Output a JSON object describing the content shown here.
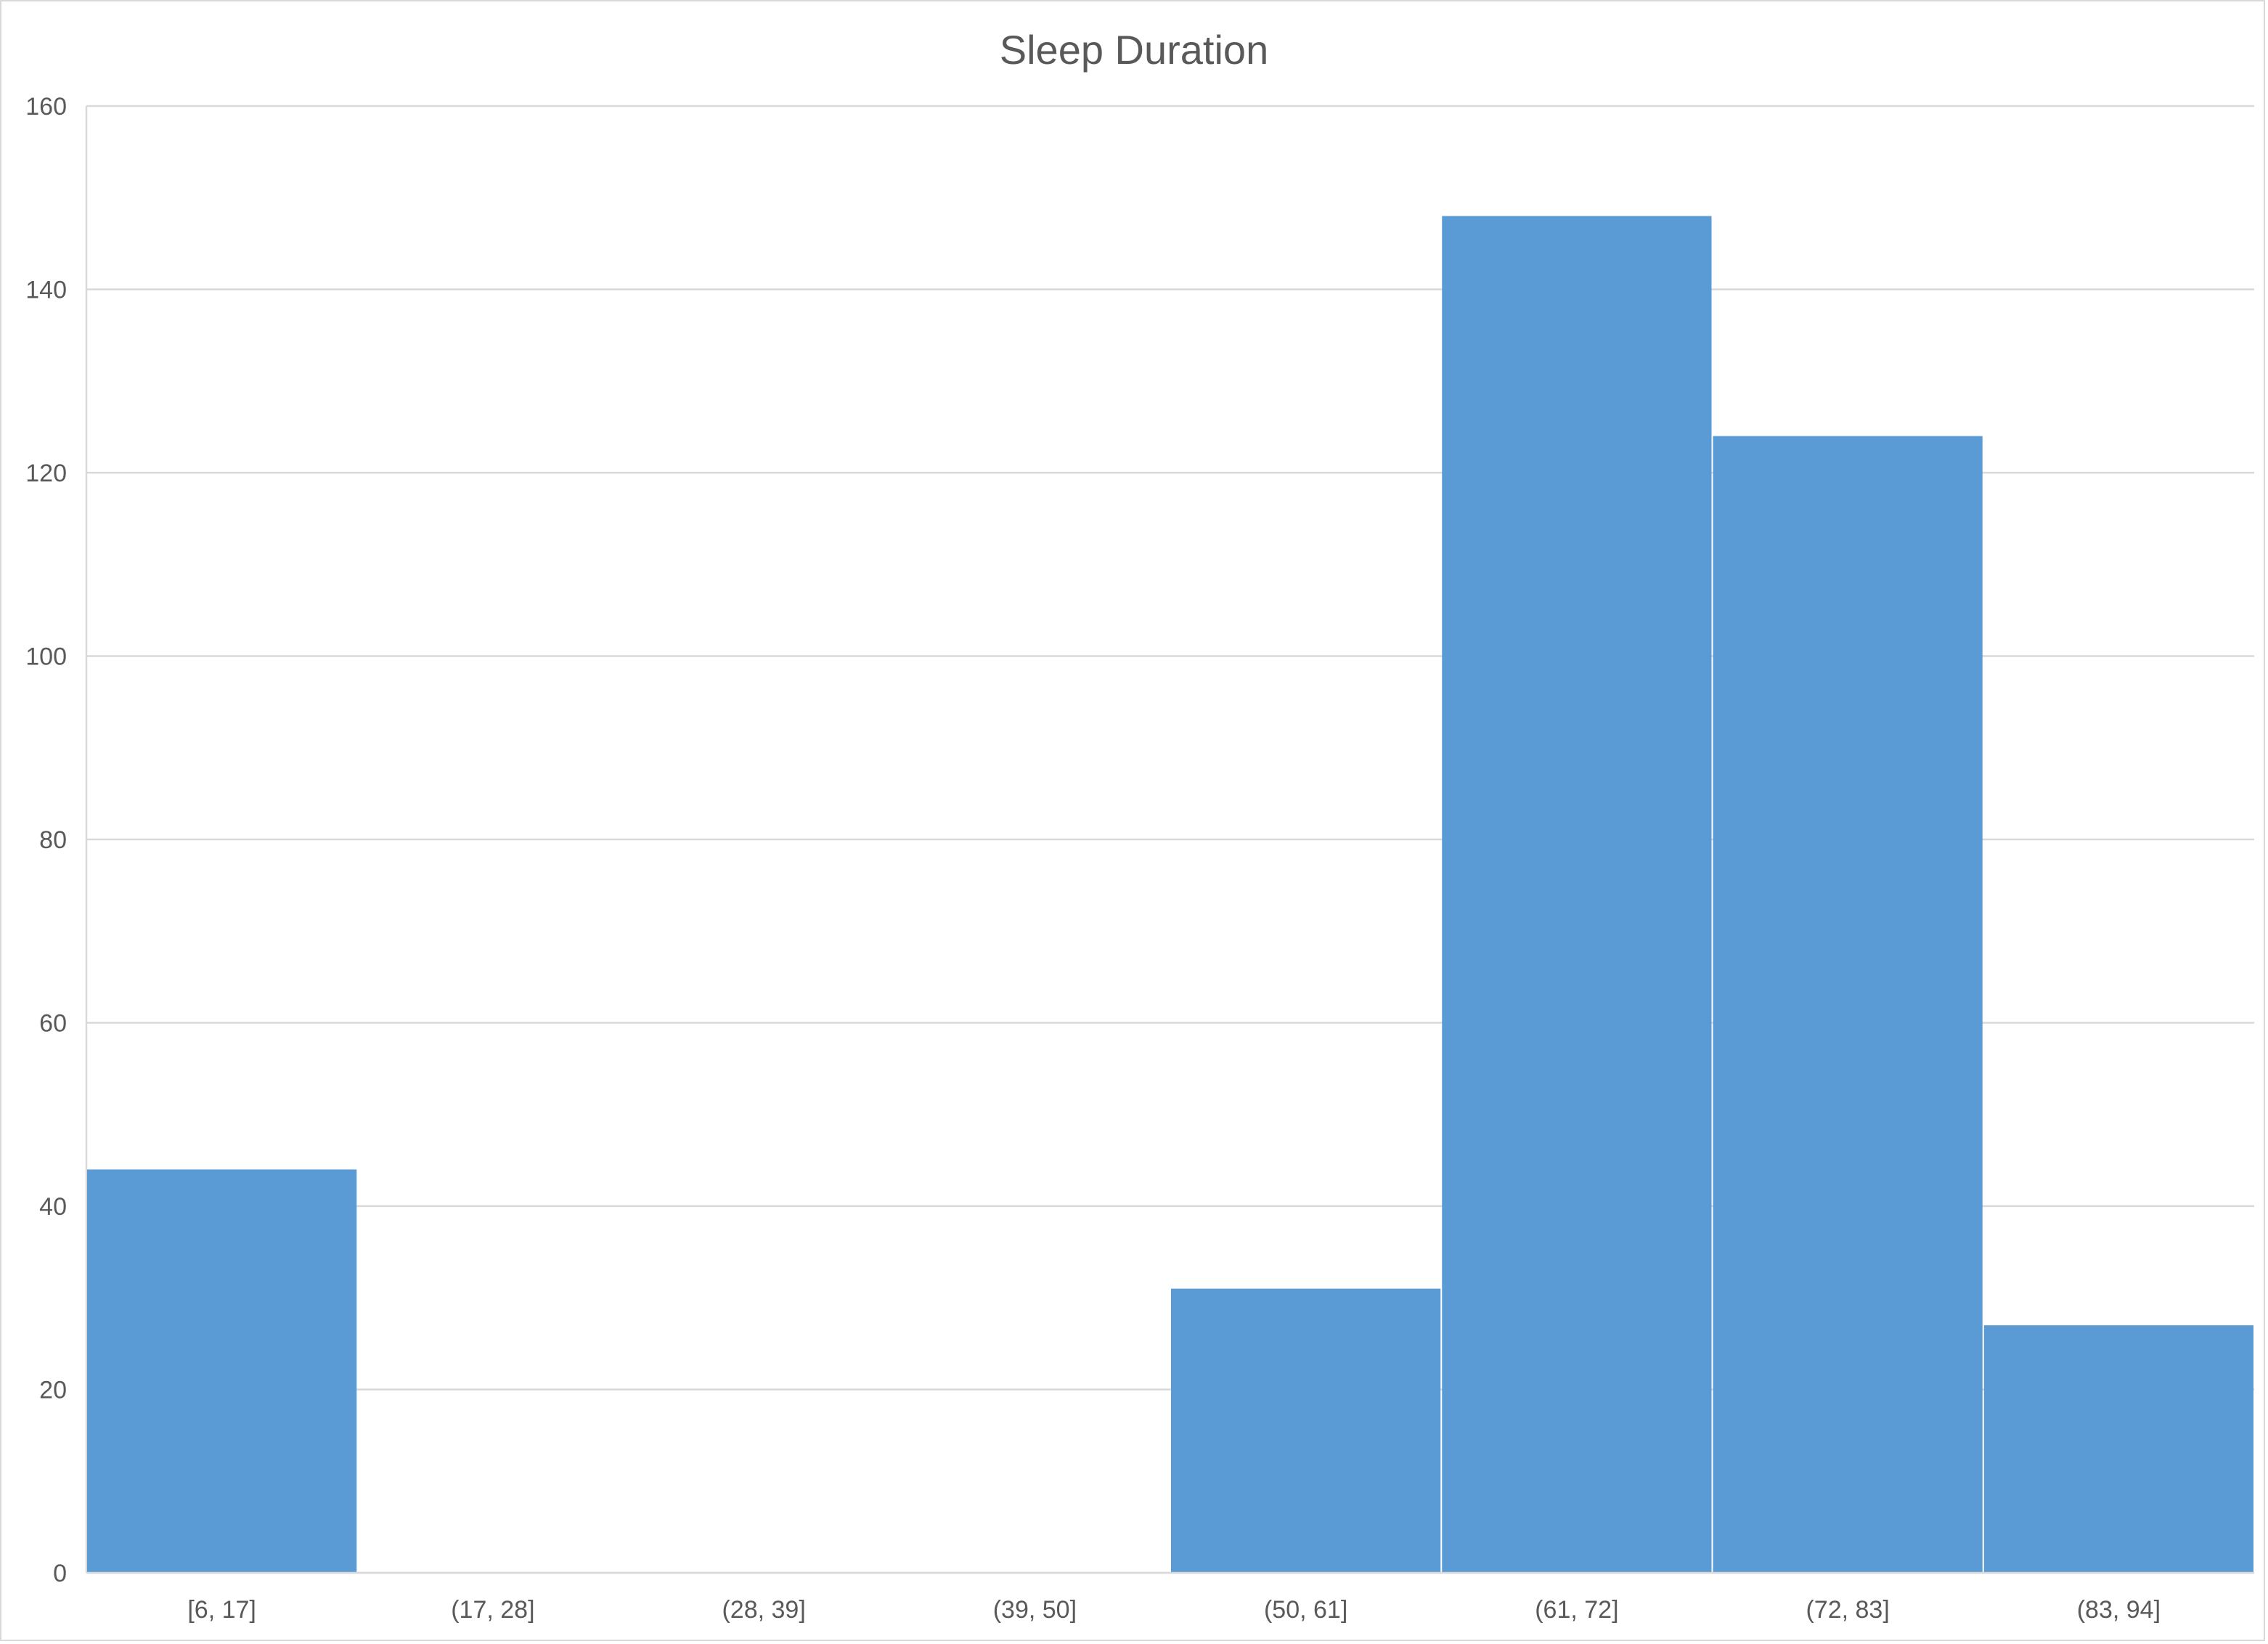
{
  "chart_data": {
    "type": "bar",
    "title": "Sleep Duration",
    "xlabel": "",
    "ylabel": "",
    "categories": [
      "[6, 17]",
      "(17, 28]",
      "(28, 39]",
      "(39, 50]",
      "(50, 61]",
      "(61, 72]",
      "(72, 83]",
      "(83, 94]"
    ],
    "values": [
      44,
      0,
      0,
      0,
      31,
      148,
      124,
      27
    ],
    "ylim": [
      0,
      160
    ],
    "yticks": [
      "0",
      "20",
      "40",
      "60",
      "80",
      "100",
      "120",
      "140",
      "160"
    ],
    "grid": true,
    "legend": "none",
    "bar_color": "#5b9bd5",
    "grid_color": "#d9d9d9"
  }
}
